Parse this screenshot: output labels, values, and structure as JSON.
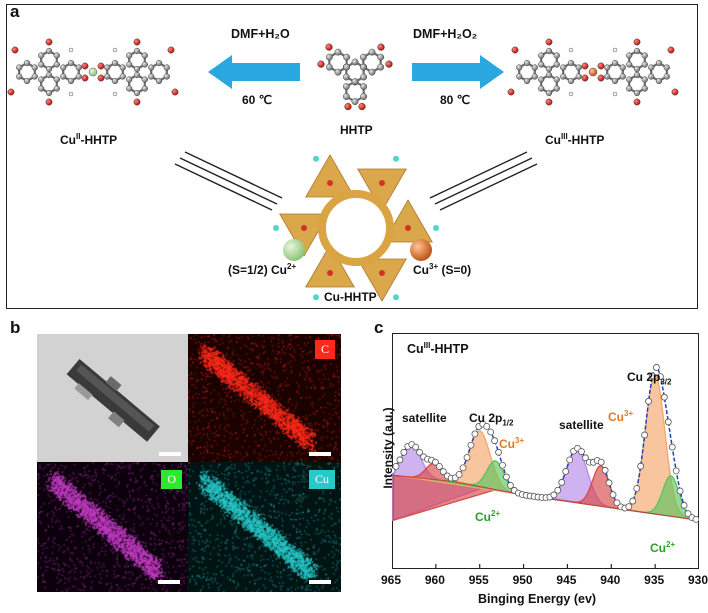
{
  "panel_a": {
    "letter": "a",
    "left_arrow_top": "DMF+H₂O",
    "left_arrow_bottom": "60 ℃",
    "right_arrow_top": "DMF+H₂O₂",
    "right_arrow_bottom": "80 ℃",
    "center_molecule": "HHTP",
    "left_molecule_base": "Cu",
    "left_molecule_sup": "II",
    "left_molecule_suffix": "-HHTP",
    "right_molecule_base": "Cu",
    "right_molecule_sup": "III",
    "right_molecule_suffix": "-HHTP",
    "spin_left_prefix": "(S=1/2) Cu",
    "spin_left_sup": "2+",
    "spin_right_base": "Cu",
    "spin_right_sup": "3+",
    "spin_right_suffix": " (S=0)",
    "framework_label": "Cu-HHTP",
    "colors": {
      "arrow": "#29a8e0",
      "cu2": "#b5dca0",
      "cu3": "#e07a2a",
      "framework": "#d9a441"
    }
  },
  "panel_b": {
    "letter": "b",
    "tags": {
      "c": "C",
      "o": "O",
      "cu": "Cu"
    },
    "colors": {
      "c": "#ff2a1a",
      "o": "#2ee82e",
      "cu": "#27c9c9"
    }
  },
  "chart_data": {
    "type": "line",
    "title": "Cu^III-HHTP",
    "title_base": "Cu",
    "title_sup": "III",
    "title_suffix": "-HHTP",
    "xlabel": "Binging Energy (ev)",
    "ylabel": "Intensity (a.u.)",
    "xlim": [
      965,
      930
    ],
    "x_reversed": true,
    "xticks": [
      965,
      960,
      955,
      950,
      945,
      940,
      935,
      930
    ],
    "yticks_shown": false,
    "annotations": {
      "sat1": "satellite",
      "p12_base": "Cu 2p",
      "p12_sub": "1/2",
      "cu3_a_base": "Cu",
      "cu3_a_sup": "3+",
      "cu2_a_base": "Cu",
      "cu2_a_sup": "2+",
      "sat2": "satellite",
      "p32_base": "Cu 2p",
      "p32_sub": "3/2",
      "cu3_b_base": "Cu",
      "cu3_b_sup": "3+",
      "cu2_b_base": "Cu",
      "cu2_b_sup": "2+"
    },
    "baseline": [
      [
        965,
        0.62
      ],
      [
        958,
        0.55
      ],
      [
        950,
        0.4
      ],
      [
        943,
        0.3
      ],
      [
        930,
        0.12
      ]
    ],
    "peaks": [
      {
        "name": "sat-1",
        "center": 962.8,
        "fwhm": 2.6,
        "height": 0.36,
        "color": "#b48be8"
      },
      {
        "name": "sat-1b",
        "center": 960.2,
        "fwhm": 2.2,
        "height": 0.18,
        "color": "#d84848"
      },
      {
        "name": "Cu3+ 2p1/2",
        "center": 955.0,
        "fwhm": 2.8,
        "height": 0.62,
        "color": "#f4a66a"
      },
      {
        "name": "Cu2+ 2p1/2",
        "center": 953.2,
        "fwhm": 2.3,
        "height": 0.32,
        "color": "#5cc45c"
      },
      {
        "name": "sat-2",
        "center": 943.9,
        "fwhm": 2.8,
        "height": 0.6,
        "color": "#b48be8"
      },
      {
        "name": "sat-2b",
        "center": 941.2,
        "fwhm": 2.2,
        "height": 0.45,
        "color": "#d84848"
      },
      {
        "name": "Cu3+ 2p3/2",
        "center": 935.0,
        "fwhm": 2.6,
        "height": 1.55,
        "color": "#f4a66a"
      },
      {
        "name": "Cu2+ 2p3/2",
        "center": 933.2,
        "fwhm": 2.2,
        "height": 0.45,
        "color": "#5cc45c"
      }
    ],
    "legend": "none"
  }
}
